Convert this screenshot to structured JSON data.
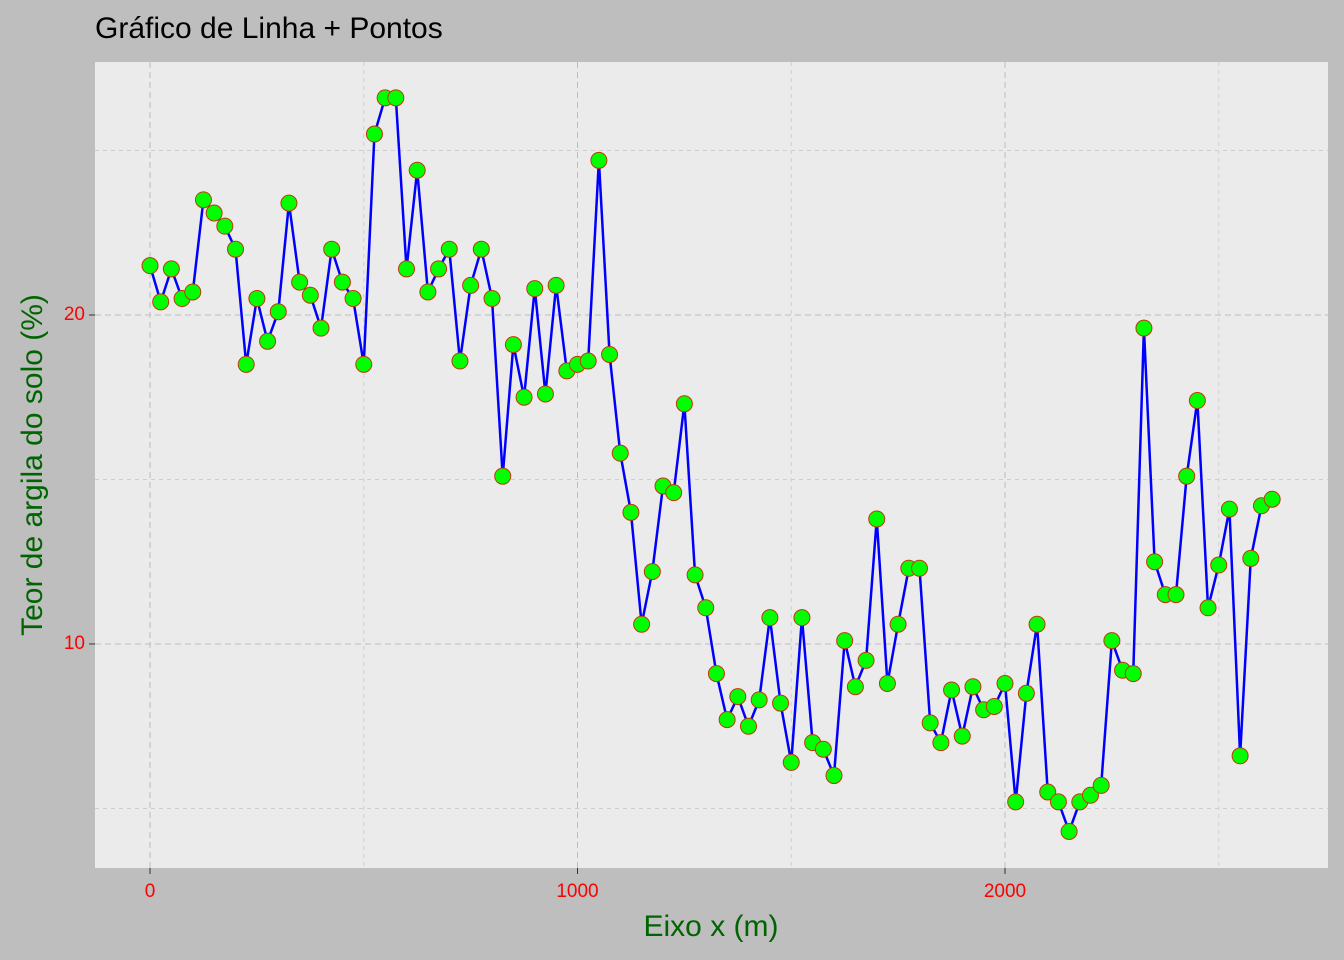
{
  "chart_data": {
    "type": "line",
    "title": "Gráfico de Linha + Pontos",
    "xlabel": "Eixo x (m)",
    "ylabel": "Teor de argila do solo (%)",
    "x": [
      0,
      25,
      50,
      75,
      100,
      125,
      150,
      175,
      200,
      225,
      250,
      275,
      300,
      325,
      350,
      375,
      400,
      425,
      450,
      475,
      500,
      525,
      550,
      575,
      600,
      625,
      650,
      675,
      700,
      725,
      750,
      775,
      800,
      825,
      850,
      875,
      900,
      925,
      950,
      975,
      1000,
      1025,
      1050,
      1075,
      1100,
      1125,
      1150,
      1175,
      1200,
      1225,
      1250,
      1275,
      1300,
      1325,
      1350,
      1375,
      1400,
      1425,
      1450,
      1475,
      1500,
      1525,
      1550,
      1575,
      1600,
      1625,
      1650,
      1675,
      1700,
      1725,
      1750,
      1775,
      1800,
      1825,
      1850,
      1875,
      1900,
      1925,
      1950,
      1975,
      2000,
      2025,
      2050,
      2075,
      2100,
      2125,
      2150,
      2175,
      2200,
      2225,
      2250,
      2275,
      2300,
      2325,
      2350,
      2375,
      2400,
      2425,
      2450,
      2475,
      2500,
      2525,
      2550,
      2575,
      2600,
      2625
    ],
    "series": [
      {
        "line_color": "#0000ff",
        "point_color": "#00ff00",
        "point_edge": "#c0380a",
        "values": [
          21.5,
          20.4,
          21.4,
          20.5,
          20.7,
          23.5,
          23.1,
          22.7,
          22.0,
          18.5,
          20.5,
          19.2,
          20.1,
          23.4,
          21.0,
          20.6,
          19.6,
          22.0,
          21.0,
          20.5,
          18.5,
          25.5,
          26.6,
          26.6,
          21.4,
          24.4,
          20.7,
          21.4,
          22.0,
          18.6,
          20.9,
          22.0,
          20.5,
          15.1,
          19.1,
          17.5,
          20.8,
          17.6,
          20.9,
          18.3,
          18.5,
          18.6,
          24.7,
          18.8,
          15.8,
          14.0,
          10.6,
          12.2,
          14.8,
          14.6,
          17.3,
          12.1,
          11.1,
          9.1,
          7.7,
          8.4,
          7.5,
          8.3,
          10.8,
          8.2,
          6.4,
          10.8,
          7.0,
          6.8,
          6.0,
          10.1,
          8.7,
          9.5,
          13.8,
          8.8,
          10.6,
          12.3,
          12.3,
          7.6,
          7.0,
          8.6,
          7.2,
          8.7,
          8.0,
          8.1,
          8.8,
          5.2,
          8.5,
          10.6,
          5.5,
          5.2,
          4.3,
          5.2,
          5.4,
          5.7,
          10.1,
          9.2,
          9.1,
          19.6,
          12.5,
          11.5,
          11.5,
          15.1,
          17.4,
          11.1,
          12.4,
          14.1,
          6.6,
          12.6,
          14.2,
          14.4
        ]
      }
    ],
    "xlim": [
      -128.7,
      2755.6
    ],
    "xticks": [
      0,
      1000,
      2000
    ],
    "xminor": [
      500,
      1500,
      2500
    ],
    "ylim": [
      3.19,
      27.69
    ],
    "yticks": [
      10,
      20
    ],
    "yminor": [
      5,
      15,
      25
    ],
    "grid": true
  }
}
